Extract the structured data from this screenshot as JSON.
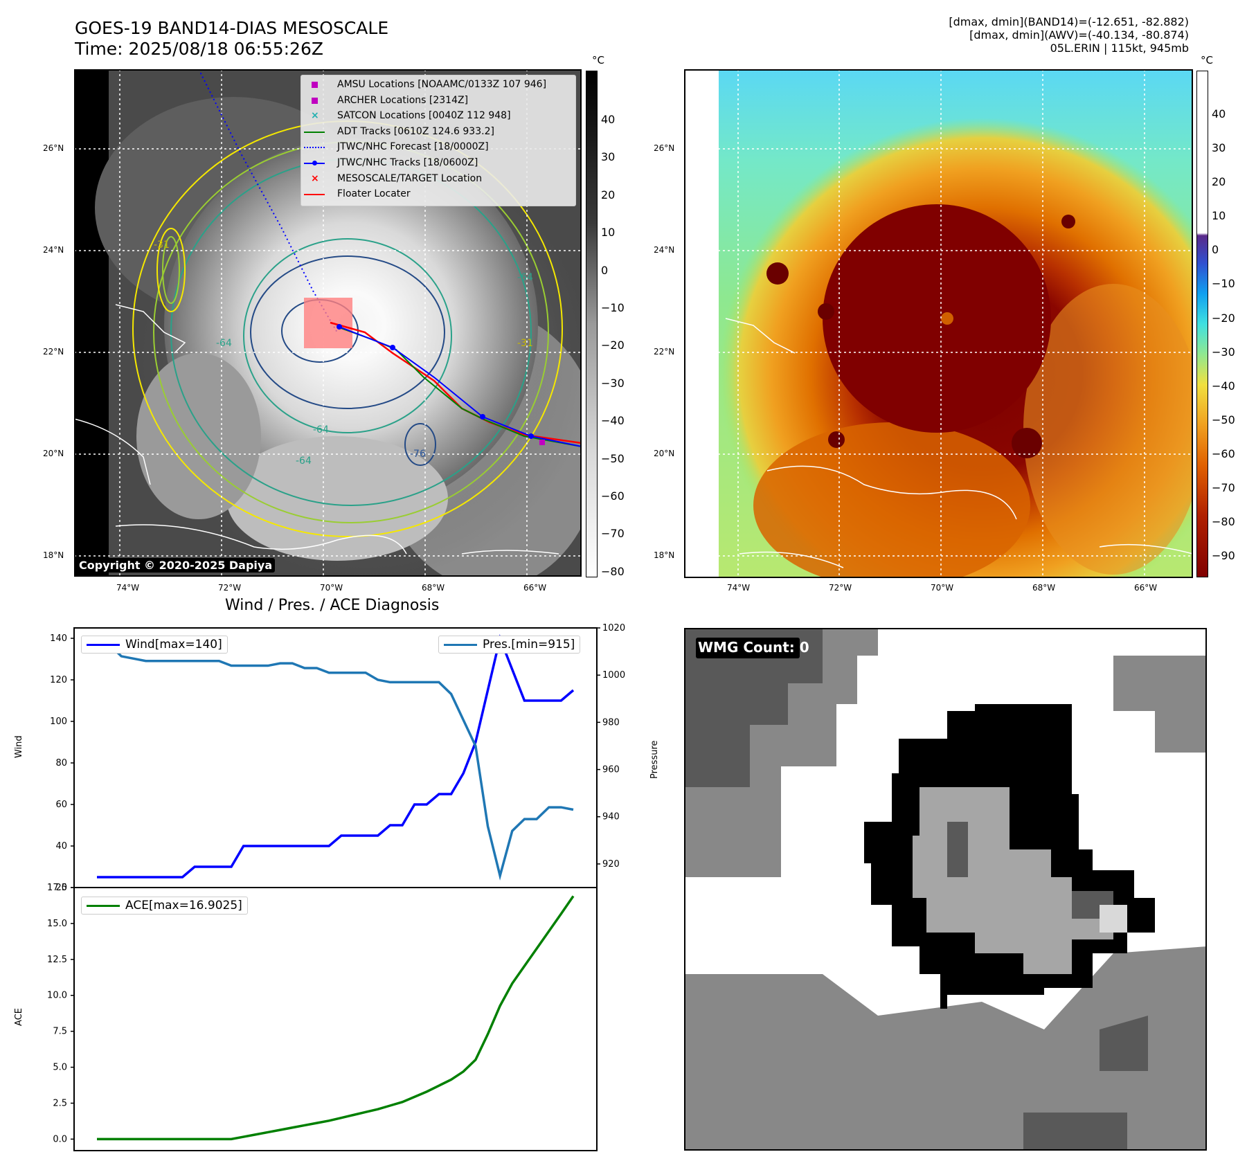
{
  "header": {
    "title": "GOES-19 BAND14-DIAS MESOSCALE",
    "time": "Time: 2025/08/18 06:55:26Z",
    "info_line1": "[dmax, dmin](BAND14)=(-12.651, -82.882)",
    "info_line2": "[dmax, dmin](AWV)=(-40.134, -80.874)",
    "info_line3": "05L.ERIN | 115kt, 945mb"
  },
  "map_left": {
    "lat_labels": [
      "26°N",
      "24°N",
      "22°N",
      "20°N",
      "18°N"
    ],
    "lon_labels": [
      "74°W",
      "72°W",
      "70°W",
      "68°W",
      "66°W"
    ],
    "copyright": "Copyright © 2020-2025 Dapiya",
    "contour_labels": [
      "-31",
      "-64",
      "-76",
      "-64",
      "-64",
      "-31",
      "-64"
    ],
    "legend": [
      {
        "label": "AMSU Locations [NOAAMC/0133Z 107 946]",
        "color": "#c000c0",
        "symbol": "square"
      },
      {
        "label": "ARCHER Locations [2314Z]",
        "color": "#c000c0",
        "symbol": "square"
      },
      {
        "label": "SATCON Locations [0040Z 112 948]",
        "color": "#20b0b0",
        "symbol": "x"
      },
      {
        "label": "ADT Tracks [0610Z 124.6 933.2]",
        "color": "#008000",
        "symbol": "line"
      },
      {
        "label": "JTWC/NHC Forecast [18/0000Z]",
        "color": "#0000ff",
        "symbol": "dotted"
      },
      {
        "label": "JTWC/NHC Tracks [18/0600Z]",
        "color": "#0000ff",
        "symbol": "line-dot"
      },
      {
        "label": "MESOSCALE/TARGET Location",
        "color": "#ff0000",
        "symbol": "x"
      },
      {
        "label": "Floater Locater",
        "color": "#ff0000",
        "symbol": "line"
      }
    ],
    "colorbar": {
      "unit": "°C",
      "ticks": [
        "40",
        "30",
        "20",
        "10",
        "0",
        "−10",
        "−20",
        "−30",
        "−40",
        "−50",
        "−60",
        "−70",
        "−80"
      ]
    }
  },
  "map_right": {
    "lat_labels": [
      "26°N",
      "24°N",
      "22°N",
      "20°N",
      "18°N"
    ],
    "lon_labels": [
      "74°W",
      "72°W",
      "70°W",
      "68°W",
      "66°W"
    ],
    "colorbar": {
      "unit": "°C",
      "ticks": [
        "40",
        "30",
        "20",
        "10",
        "0",
        "−10",
        "−20",
        "−30",
        "−40",
        "−50",
        "−60",
        "−70",
        "−80",
        "−90"
      ]
    }
  },
  "wmg": {
    "label": "WMG Count: 0"
  },
  "chart_data": [
    {
      "type": "line",
      "title": "Wind / Pres. / ACE Diagnosis",
      "ylabel": "Wind",
      "y2label": "Pressure",
      "ylim": [
        20,
        145
      ],
      "y2lim": [
        910,
        1020
      ],
      "yticks": [
        20,
        40,
        60,
        80,
        100,
        120,
        140
      ],
      "y2ticks": [
        920,
        940,
        960,
        980,
        1000,
        1020
      ],
      "series": [
        {
          "name": "Wind[max=140]",
          "color": "#0000ff",
          "axis": "left",
          "values": [
            25,
            25,
            25,
            25,
            25,
            25,
            25,
            25,
            30,
            30,
            30,
            30,
            40,
            40,
            40,
            40,
            40,
            40,
            40,
            40,
            45,
            45,
            45,
            45,
            50,
            50,
            60,
            60,
            65,
            65,
            75,
            90,
            115,
            140,
            125,
            110,
            110,
            110,
            110,
            115
          ]
        },
        {
          "name": "Pres.[min=915]",
          "color": "#1f77b4",
          "axis": "right",
          "values": [
            1013,
            1013,
            1008,
            1007,
            1006,
            1006,
            1006,
            1006,
            1006,
            1006,
            1006,
            1004,
            1004,
            1004,
            1004,
            1005,
            1005,
            1003,
            1003,
            1001,
            1001,
            1001,
            1001,
            998,
            997,
            997,
            997,
            997,
            997,
            992,
            981,
            970,
            936,
            915,
            934,
            939,
            939,
            944,
            944,
            943
          ]
        }
      ]
    },
    {
      "type": "line",
      "ylabel": "ACE",
      "ylim": [
        -0.8,
        17.5
      ],
      "yticks": [
        "0.0",
        "2.5",
        "5.0",
        "7.5",
        "10.0",
        "12.5",
        "15.0",
        "17.5"
      ],
      "series": [
        {
          "name": "ACE[max=16.9025]",
          "color": "#008000",
          "values": [
            0,
            0,
            0,
            0,
            0,
            0,
            0,
            0,
            0,
            0,
            0,
            0,
            0.16,
            0.32,
            0.48,
            0.64,
            0.8,
            0.96,
            1.12,
            1.28,
            1.48,
            1.68,
            1.88,
            2.08,
            2.33,
            2.58,
            2.94,
            3.3,
            3.72,
            4.14,
            4.7,
            5.52,
            7.3,
            9.27,
            10.83,
            12.04,
            13.25,
            14.46,
            15.67,
            16.9025
          ]
        }
      ]
    }
  ]
}
